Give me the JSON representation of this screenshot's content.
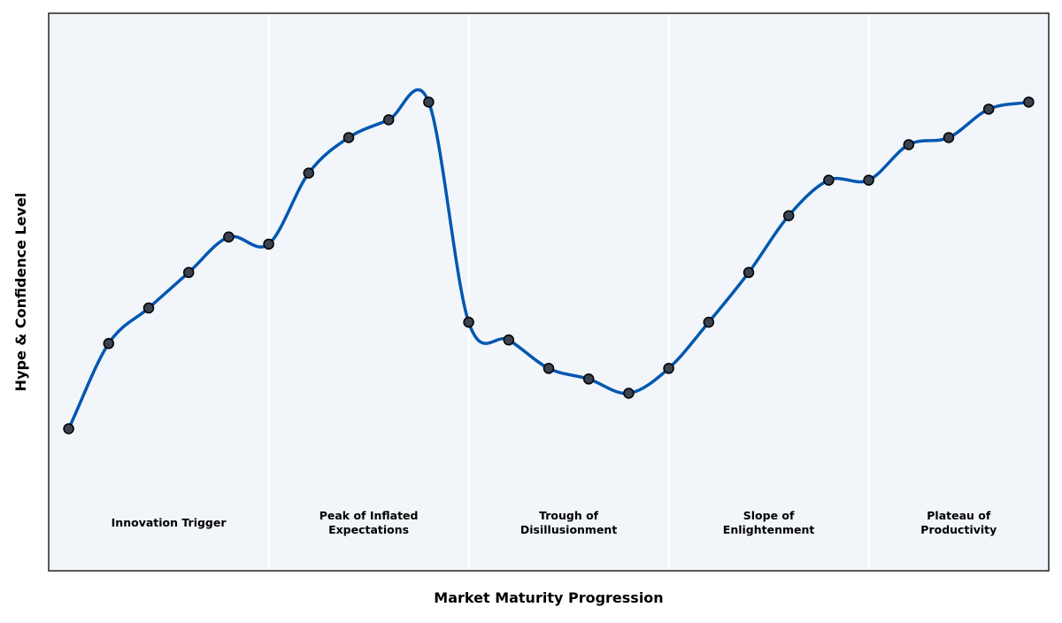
{
  "chart_data": {
    "type": "line",
    "title": "",
    "xlabel": "Market Maturity Progression",
    "ylabel": "Hype & Confidence Level",
    "x": [
      0,
      1,
      2,
      3,
      4,
      5,
      6,
      7,
      8,
      9,
      10,
      11,
      12,
      13,
      14,
      15,
      16,
      17,
      18,
      19,
      20,
      21,
      22,
      23,
      24
    ],
    "series": [
      {
        "values": [
          18,
          42,
          52,
          62,
          72,
          70,
          90,
          100,
          105,
          110,
          48,
          43,
          35,
          32,
          28,
          35,
          48,
          62,
          78,
          88,
          88,
          98,
          100,
          108,
          110
        ]
      }
    ],
    "xlim": [
      -0.5,
      24.5
    ],
    "ylim": [
      -22,
      135
    ],
    "axis_ticks_visible": false,
    "grid": false,
    "phases": [
      {
        "label": "Innovation Trigger",
        "start": -0.5,
        "end": 5
      },
      {
        "label": "Peak of Inflated\nExpectations",
        "start": 5,
        "end": 10
      },
      {
        "label": "Trough of\nDisillusionment",
        "start": 10,
        "end": 15
      },
      {
        "label": "Slope of\nEnlightenment",
        "start": 15,
        "end": 20
      },
      {
        "label": "Plateau of\nProductivity",
        "start": 20,
        "end": 24.5
      }
    ],
    "colors": {
      "line": "#0057b0",
      "marker_fill": "#3b4350",
      "marker_edge": "#000000",
      "plot_background": "#f2f6fa",
      "phase_divider": "#ffffff",
      "axes_border": "#222222"
    }
  }
}
